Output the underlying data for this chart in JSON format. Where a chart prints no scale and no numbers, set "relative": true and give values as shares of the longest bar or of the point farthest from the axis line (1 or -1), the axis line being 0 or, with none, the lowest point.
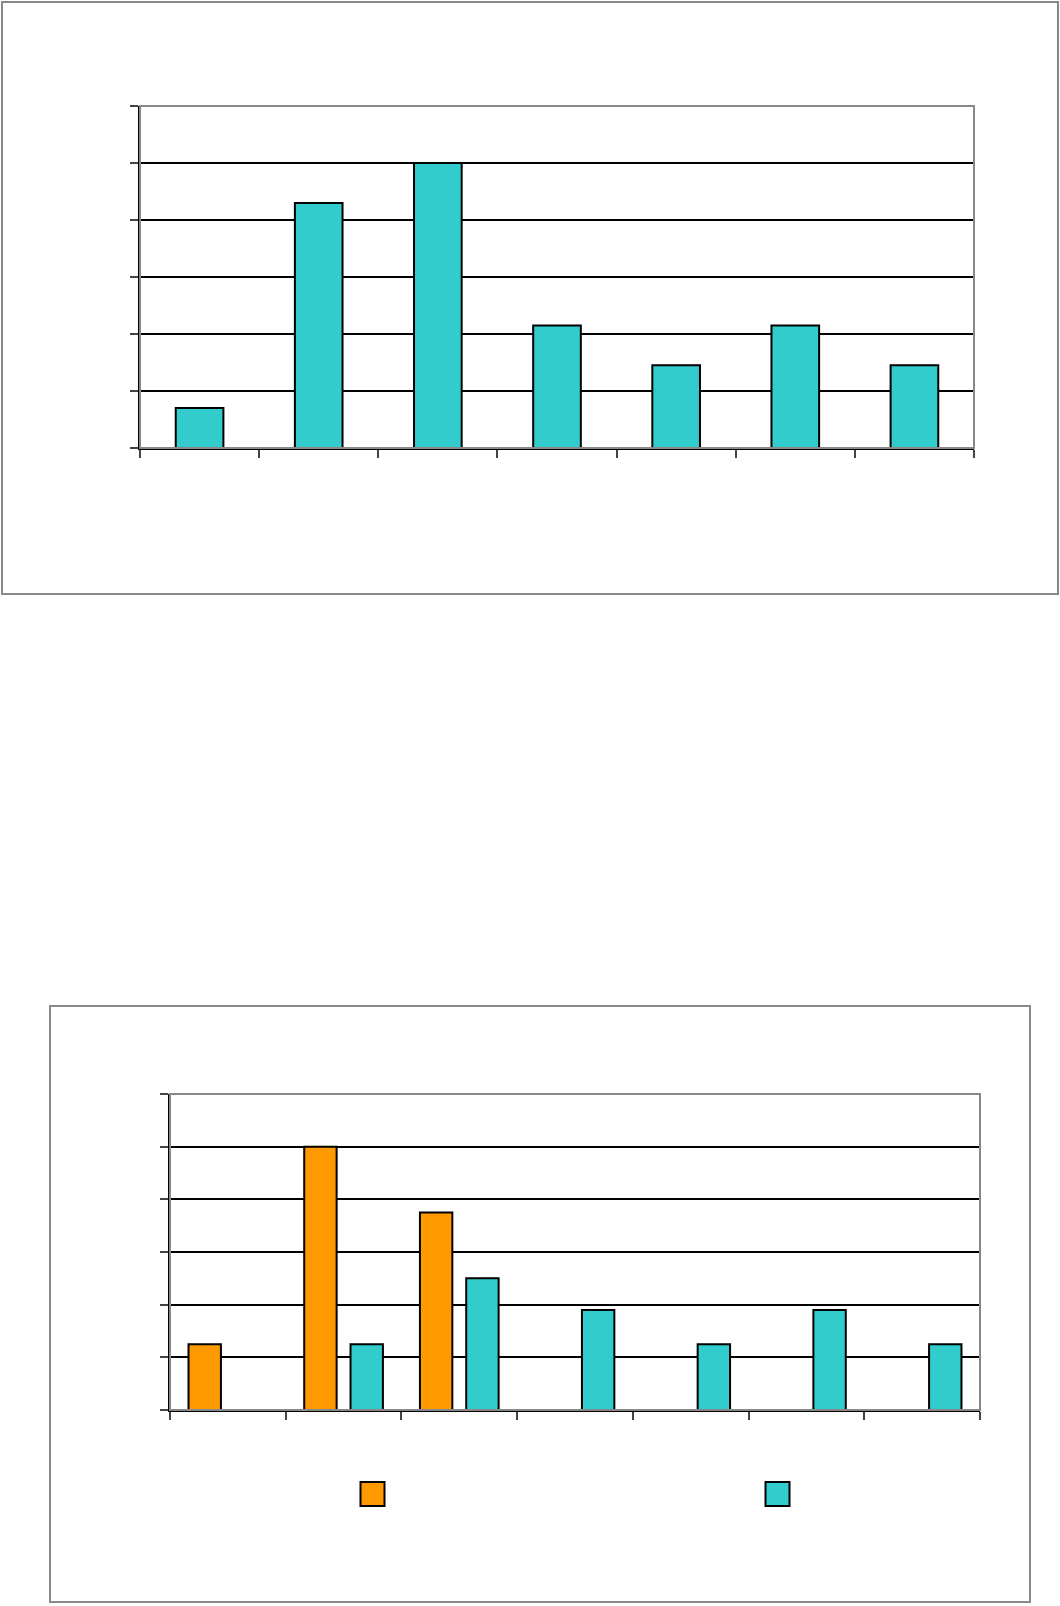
{
  "chart_data": [
    {
      "type": "bar",
      "relative": true,
      "grid": "y",
      "legend": false,
      "categories": [
        null,
        null,
        null,
        null,
        null,
        null,
        null
      ],
      "series": [
        {
          "color": "#33cccc",
          "values": [
            0.14,
            0.86,
            1,
            0.43,
            0.29,
            0.43,
            0.29
          ]
        }
      ]
    },
    {
      "type": "bar",
      "relative": true,
      "grid": "y",
      "categories": [
        null,
        null,
        null,
        null,
        null,
        null,
        null
      ],
      "series": [
        {
          "color": "#ff9900",
          "values": [
            0.25,
            1,
            0.75,
            null,
            null,
            null,
            null
          ]
        },
        {
          "color": "#33cccc",
          "values": [
            null,
            0.25,
            0.5,
            0.38,
            0.25,
            0.38,
            0.25
          ]
        }
      ]
    }
  ]
}
